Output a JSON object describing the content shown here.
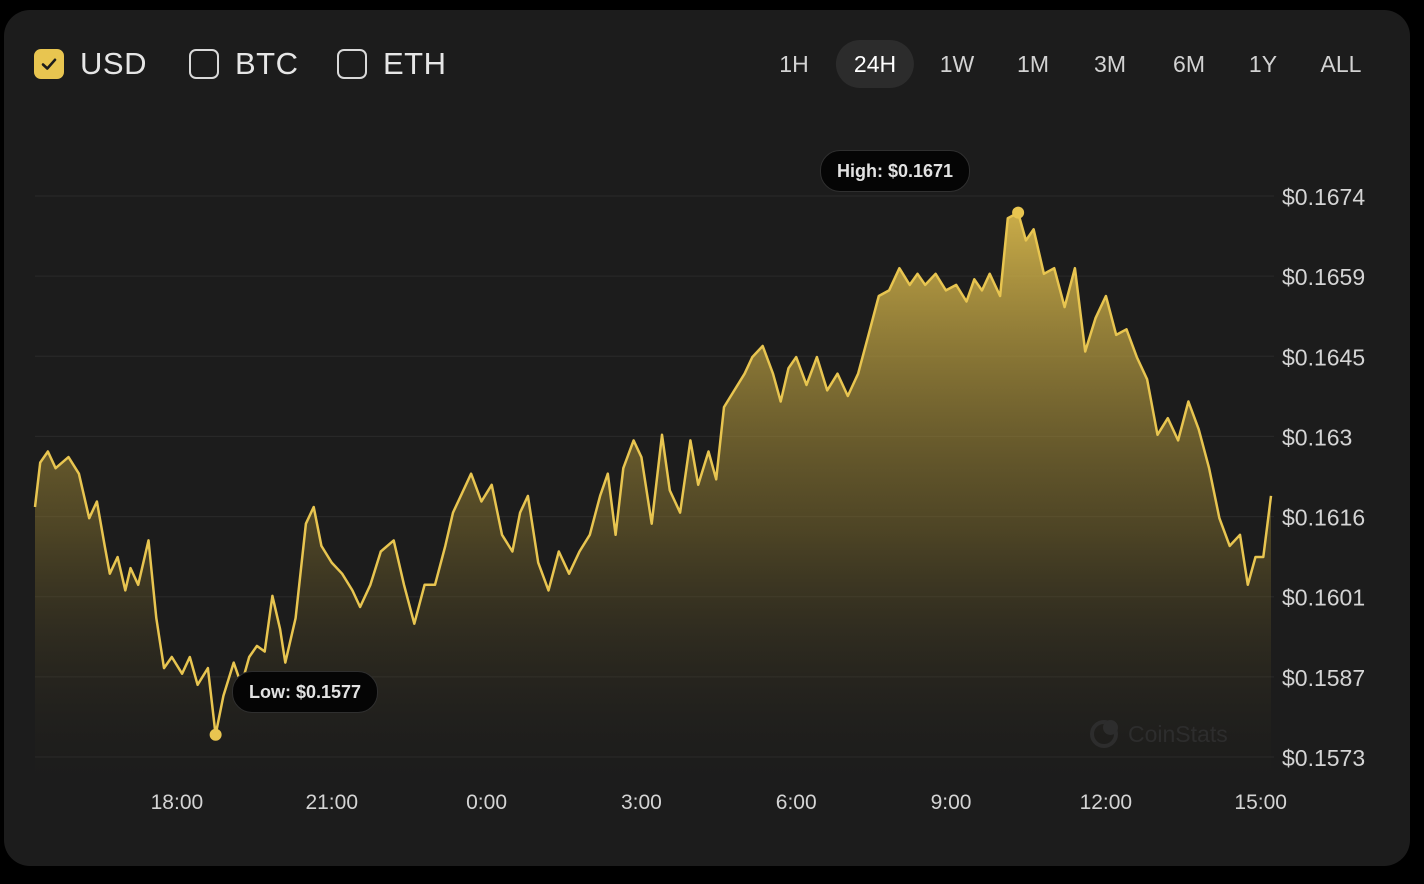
{
  "currencies": [
    {
      "label": "USD",
      "checked": true
    },
    {
      "label": "BTC",
      "checked": false
    },
    {
      "label": "ETH",
      "checked": false
    }
  ],
  "time_ranges": [
    "1H",
    "24H",
    "1W",
    "1M",
    "3M",
    "6M",
    "1Y",
    "ALL"
  ],
  "active_range": "24H",
  "tooltips": {
    "high": "High: $0.1671",
    "low": "Low: $0.1577"
  },
  "watermark": "CoinStats",
  "colors": {
    "accent": "#e8c550",
    "background": "#1c1c1c",
    "grid": "#2a2a2a"
  },
  "chart_data": {
    "type": "area",
    "y_ticks": [
      "$0.1674",
      "$0.1659",
      "$0.1645",
      "$0.163",
      "$0.1616",
      "$0.1601",
      "$0.1587",
      "$0.1573"
    ],
    "x_ticks": [
      "18:00",
      "21:00",
      "0:00",
      "3:00",
      "6:00",
      "9:00",
      "12:00",
      "15:00"
    ],
    "ylim": [
      0.1573,
      0.1674
    ],
    "xlim": [
      15.25,
      39.2
    ],
    "grid": true,
    "series": [
      {
        "x": [
          15.25,
          15.35,
          15.5,
          15.65,
          15.9,
          16.1,
          16.3,
          16.45,
          16.6,
          16.7,
          16.85,
          17.0,
          17.1,
          17.25,
          17.45,
          17.6,
          17.75,
          17.9,
          18.1,
          18.25,
          18.4,
          18.6,
          18.75,
          18.9,
          19.1,
          19.25,
          19.4,
          19.55,
          19.7,
          19.85,
          20.0,
          20.1,
          20.3,
          20.5,
          20.65,
          20.8,
          21.0,
          21.2,
          21.4,
          21.55,
          21.75,
          21.95,
          22.2,
          22.4,
          22.6,
          22.8,
          23.0,
          23.2,
          23.35,
          23.5,
          23.7,
          23.9,
          24.1,
          24.3,
          24.5,
          24.65,
          24.8,
          25.0,
          25.2,
          25.4,
          25.6,
          25.8,
          26.0,
          26.2,
          26.35,
          26.5,
          26.65,
          26.85,
          27.0,
          27.2,
          27.4,
          27.55,
          27.75,
          27.95,
          28.1,
          28.3,
          28.45,
          28.6,
          28.8,
          29.0,
          29.15,
          29.35,
          29.55,
          29.7,
          29.85,
          30.0,
          30.2,
          30.4,
          30.6,
          30.8,
          31.0,
          31.2,
          31.4,
          31.6,
          31.8,
          32.0,
          32.2,
          32.35,
          32.5,
          32.7,
          32.9,
          33.1,
          33.3,
          33.45,
          33.6,
          33.75,
          33.95,
          34.1,
          34.3,
          34.45,
          34.6,
          34.8,
          35.0,
          35.2,
          35.4,
          35.6,
          35.8,
          36.0,
          36.2,
          36.4,
          36.6,
          36.8,
          37.0,
          37.2,
          37.4,
          37.6,
          37.8,
          38.0,
          38.2,
          38.4,
          38.6,
          38.75,
          38.9,
          39.05,
          39.2
        ],
        "values": [
          0.1618,
          0.1626,
          0.1628,
          0.1625,
          0.1627,
          0.1624,
          0.1616,
          0.1619,
          0.1611,
          0.1606,
          0.1609,
          0.1603,
          0.1607,
          0.1604,
          0.1612,
          0.1598,
          0.1589,
          0.1591,
          0.1588,
          0.1591,
          0.1586,
          0.1589,
          0.1577,
          0.1584,
          0.159,
          0.1586,
          0.1591,
          0.1593,
          0.1592,
          0.1602,
          0.1596,
          0.159,
          0.1598,
          0.1615,
          0.1618,
          0.1611,
          0.1608,
          0.1606,
          0.1603,
          0.16,
          0.1604,
          0.161,
          0.1612,
          0.1604,
          0.1597,
          0.1604,
          0.1604,
          0.1611,
          0.1617,
          0.162,
          0.1624,
          0.1619,
          0.1622,
          0.1613,
          0.161,
          0.1617,
          0.162,
          0.1608,
          0.1603,
          0.161,
          0.1606,
          0.161,
          0.1613,
          0.162,
          0.1624,
          0.1613,
          0.1625,
          0.163,
          0.1627,
          0.1615,
          0.1631,
          0.1621,
          0.1617,
          0.163,
          0.1622,
          0.1628,
          0.1623,
          0.1636,
          0.1639,
          0.1642,
          0.1645,
          0.1647,
          0.1642,
          0.1637,
          0.1643,
          0.1645,
          0.164,
          0.1645,
          0.1639,
          0.1642,
          0.1638,
          0.1642,
          0.1649,
          0.1656,
          0.1657,
          0.1661,
          0.1658,
          0.166,
          0.1658,
          0.166,
          0.1657,
          0.1658,
          0.1655,
          0.1659,
          0.1657,
          0.166,
          0.1656,
          0.167,
          0.1671,
          0.1666,
          0.1668,
          0.166,
          0.1661,
          0.1654,
          0.1661,
          0.1646,
          0.1652,
          0.1656,
          0.1649,
          0.165,
          0.1645,
          0.1641,
          0.1631,
          0.1634,
          0.163,
          0.1637,
          0.1632,
          0.1625,
          0.1616,
          0.1611,
          0.1613,
          0.1604,
          0.1609,
          0.1609,
          0.162
        ]
      }
    ]
  }
}
